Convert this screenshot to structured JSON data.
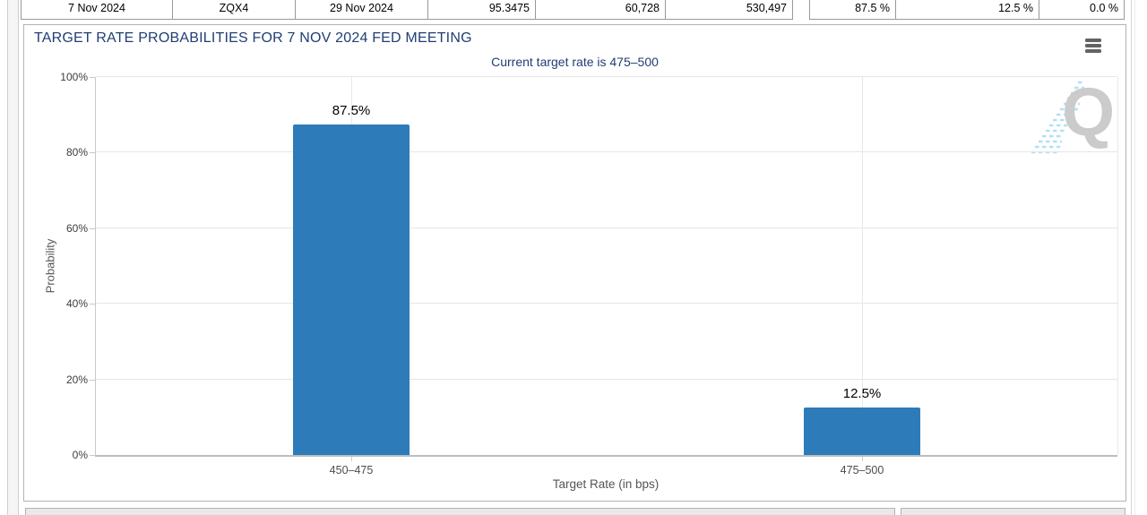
{
  "colors": {
    "title_navy": "#203e75",
    "bar_blue": "#2d7cb9",
    "panel_border": "#b3b3b3",
    "grid_gray": "#e6e6e6"
  },
  "top_row": {
    "market_table": {
      "cells": [
        {
          "label": "meeting-date",
          "value": "7 Nov 2024",
          "align": "center"
        },
        {
          "label": "contract",
          "value": "ZQX4",
          "align": "center"
        },
        {
          "label": "expiry-date",
          "value": "29 Nov 2024",
          "align": "center"
        },
        {
          "label": "price",
          "value": "95.3475",
          "align": "right"
        },
        {
          "label": "volume",
          "value": "60,728",
          "align": "right"
        },
        {
          "label": "open-interest",
          "value": "530,497",
          "align": "right"
        }
      ]
    },
    "probability_table": {
      "cells": [
        {
          "label": "prob-450-475",
          "value": "87.5 %",
          "align": "right"
        },
        {
          "label": "prob-475-500",
          "value": "12.5 %",
          "align": "right"
        },
        {
          "label": "prob-500-525",
          "value": "0.0 %",
          "align": "right"
        }
      ]
    }
  },
  "chart_panel": {
    "title": "TARGET RATE PROBABILITIES FOR 7 NOV 2024 FED MEETING",
    "menu_icon": "hamburger-menu-icon",
    "watermark_letter": "Q"
  },
  "chart_data": {
    "type": "bar",
    "title": "TARGET RATE PROBABILITIES FOR 7 NOV 2024 FED MEETING",
    "subtitle": "Current target rate is 475–500",
    "categories": [
      "450–475",
      "475–500"
    ],
    "values": [
      87.5,
      12.5
    ],
    "data_labels": [
      "87.5%",
      "12.5%"
    ],
    "xlabel": "Target Rate (in bps)",
    "ylabel": "Probability",
    "ylim": [
      0,
      100
    ],
    "ytick_values": [
      0,
      20,
      40,
      60,
      80,
      100
    ],
    "ytick_labels": [
      "0%",
      "20%",
      "40%",
      "60%",
      "80%",
      "100%"
    ],
    "bar_color": "#2d7cb9",
    "grid": true,
    "legend": false
  }
}
